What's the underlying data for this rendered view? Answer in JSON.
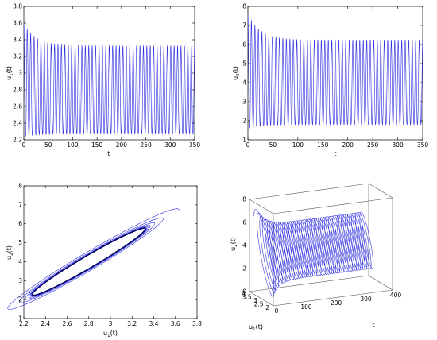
{
  "colors": {
    "series": "#2a2ae0",
    "axes": "#000000",
    "box": "#555555",
    "background": "#ffffff"
  },
  "chart_data": [
    {
      "id": "u1_vs_t",
      "type": "line",
      "xlabel": "t",
      "ylabel_main": "u",
      "ylabel_sub": "1",
      "ylabel_tail": "(t)",
      "xlim": [
        0,
        350
      ],
      "ylim": [
        2.2,
        3.8
      ],
      "xticks": [
        "0",
        "50",
        "100",
        "150",
        "200",
        "250",
        "300",
        "350"
      ],
      "yticks": [
        "2.2",
        "2.4",
        "2.6",
        "2.8",
        "3",
        "3.2",
        "3.4",
        "3.6",
        "3.8"
      ],
      "series": [
        {
          "kind": "oscillation",
          "period": 7.0,
          "start_max": 3.6,
          "start_min": 2.24,
          "steady_max": 3.33,
          "steady_min": 2.27,
          "decay": 25
        }
      ]
    },
    {
      "id": "u2_vs_t",
      "type": "line",
      "xlabel": "t",
      "ylabel_main": "u",
      "ylabel_sub": "2",
      "ylabel_tail": "(t)",
      "xlim": [
        0,
        350
      ],
      "ylim": [
        1,
        8
      ],
      "xticks": [
        "0",
        "50",
        "100",
        "150",
        "200",
        "250",
        "300",
        "350"
      ],
      "yticks": [
        "1",
        "2",
        "3",
        "4",
        "5",
        "6",
        "7",
        "8"
      ],
      "series": [
        {
          "kind": "oscillation",
          "period": 7.0,
          "start_max": 7.6,
          "start_min": 1.6,
          "steady_max": 6.25,
          "steady_min": 1.8,
          "decay": 25
        }
      ]
    },
    {
      "id": "phase_portrait",
      "type": "line",
      "xlabel_main": "u",
      "xlabel_sub": "1",
      "xlabel_tail": "(t)",
      "ylabel_main": "u",
      "ylabel_sub": "2",
      "ylabel_tail": "(t)",
      "xlim": [
        2.2,
        3.8
      ],
      "ylim": [
        1,
        8
      ],
      "xticks": [
        "2.2",
        "2.4",
        "2.6",
        "2.8",
        "3",
        "3.2",
        "3.4",
        "3.6",
        "3.8"
      ],
      "yticks": [
        "1",
        "2",
        "3",
        "4",
        "5",
        "6",
        "7",
        "8"
      ],
      "series": [
        {
          "kind": "limit-cycle",
          "center": [
            2.8,
            4.0
          ],
          "limit_radius_u1": 0.52,
          "limit_radius_u2": 2.2,
          "start_scale": 1.6
        }
      ]
    },
    {
      "id": "trajectory_3d",
      "type": "line",
      "xlabel": "t",
      "ylabel_main": "u",
      "ylabel_sub": "1",
      "ylabel_tail": "(t)",
      "zlabel_main": "u",
      "zlabel_sub": "2",
      "zlabel_tail": "(t)",
      "tlim": [
        0,
        400
      ],
      "u1lim": [
        2,
        4
      ],
      "u2lim": [
        0,
        8
      ],
      "tticks": [
        "0",
        "100",
        "200",
        "300",
        "400"
      ],
      "u1ticks": [
        "2",
        "2.5",
        "3",
        "3.5",
        "4"
      ],
      "u2ticks": [
        "0",
        "2",
        "4",
        "6",
        "8"
      ],
      "series": [
        {
          "kind": "3d-trajectory",
          "t_end": 350
        }
      ]
    }
  ]
}
